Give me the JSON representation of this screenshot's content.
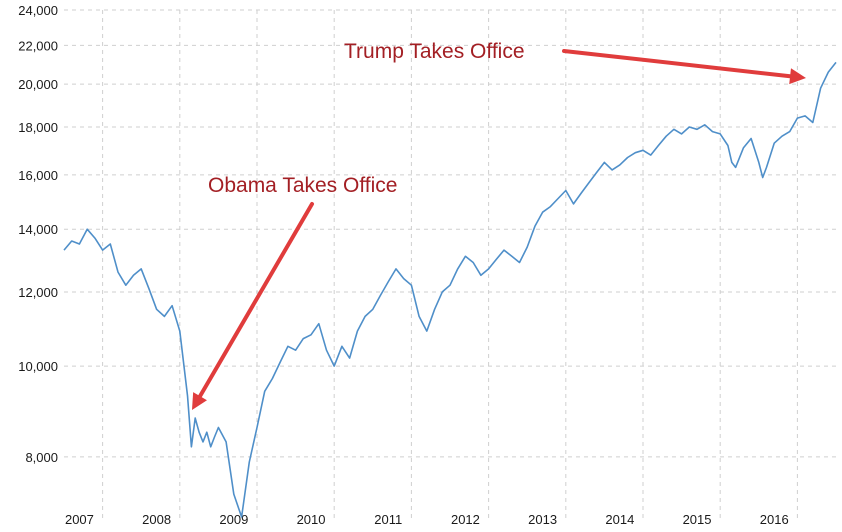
{
  "chart_data": {
    "type": "line",
    "title": "",
    "xlabel": "",
    "ylabel": "",
    "y_scale": "log",
    "ylim": [
      6850,
      24000
    ],
    "xlim": [
      2007.0,
      2017.0
    ],
    "grid": true,
    "colors": {
      "series": "#4f8fc9",
      "annotation_text": "#a31f24",
      "arrow": "#e03c3c",
      "grid": "#cfcfcf"
    },
    "y_ticks": [
      {
        "value": 8000,
        "label": "8,000"
      },
      {
        "value": 10000,
        "label": "10,000"
      },
      {
        "value": 12000,
        "label": "12,000"
      },
      {
        "value": 14000,
        "label": "14,000"
      },
      {
        "value": 16000,
        "label": "16,000"
      },
      {
        "value": 18000,
        "label": "18,000"
      },
      {
        "value": 20000,
        "label": "20,000"
      },
      {
        "value": 22000,
        "label": "22,000"
      },
      {
        "value": 24000,
        "label": "24,000"
      }
    ],
    "x_ticks": [
      {
        "value": 2007,
        "label": "2007"
      },
      {
        "value": 2008,
        "label": "2008"
      },
      {
        "value": 2009,
        "label": "2009"
      },
      {
        "value": 2010,
        "label": "2010"
      },
      {
        "value": 2011,
        "label": "2011"
      },
      {
        "value": 2012,
        "label": "2012"
      },
      {
        "value": 2013,
        "label": "2013"
      },
      {
        "value": 2014,
        "label": "2014"
      },
      {
        "value": 2015,
        "label": "2015"
      },
      {
        "value": 2016,
        "label": "2016"
      }
    ],
    "series": [
      {
        "name": "",
        "x": [
          2007.0,
          2007.1,
          2007.2,
          2007.3,
          2007.4,
          2007.5,
          2007.6,
          2007.7,
          2007.8,
          2007.9,
          2008.0,
          2008.1,
          2008.2,
          2008.3,
          2008.4,
          2008.5,
          2008.6,
          2008.65,
          2008.7,
          2008.75,
          2008.8,
          2008.85,
          2008.9,
          2008.95,
          2009.0,
          2009.1,
          2009.2,
          2009.3,
          2009.4,
          2009.5,
          2009.6,
          2009.7,
          2009.8,
          2009.9,
          2010.0,
          2010.1,
          2010.2,
          2010.3,
          2010.4,
          2010.5,
          2010.6,
          2010.7,
          2010.8,
          2010.9,
          2011.0,
          2011.1,
          2011.2,
          2011.3,
          2011.4,
          2011.5,
          2011.6,
          2011.7,
          2011.8,
          2011.9,
          2012.0,
          2012.1,
          2012.2,
          2012.3,
          2012.4,
          2012.5,
          2012.6,
          2012.7,
          2012.8,
          2012.9,
          2013.0,
          2013.1,
          2013.2,
          2013.3,
          2013.4,
          2013.5,
          2013.6,
          2013.7,
          2013.8,
          2013.9,
          2014.0,
          2014.1,
          2014.2,
          2014.3,
          2014.4,
          2014.5,
          2014.6,
          2014.7,
          2014.8,
          2014.9,
          2015.0,
          2015.1,
          2015.2,
          2015.3,
          2015.4,
          2015.5,
          2015.6,
          2015.65,
          2015.7,
          2015.8,
          2015.9,
          2016.0,
          2016.05,
          2016.1,
          2016.2,
          2016.3,
          2016.4,
          2016.5,
          2016.6,
          2016.7,
          2016.8,
          2016.9,
          2017.0
        ],
        "y": [
          13300,
          13600,
          13500,
          14000,
          13700,
          13300,
          13500,
          12600,
          12200,
          12500,
          12700,
          12100,
          11500,
          11300,
          11600,
          10900,
          9300,
          8200,
          8800,
          8500,
          8300,
          8500,
          8200,
          8400,
          8600,
          8300,
          7300,
          6900,
          7900,
          8600,
          9400,
          9700,
          10100,
          10500,
          10400,
          10700,
          10800,
          11100,
          10400,
          10000,
          10500,
          10200,
          10900,
          11300,
          11500,
          11900,
          12300,
          12700,
          12400,
          12200,
          11300,
          10900,
          11500,
          12000,
          12200,
          12700,
          13100,
          12900,
          12500,
          12700,
          13000,
          13300,
          13100,
          12900,
          13400,
          14100,
          14600,
          14800,
          15100,
          15400,
          14900,
          15300,
          15700,
          16100,
          16500,
          16200,
          16400,
          16700,
          16900,
          17000,
          16800,
          17200,
          17600,
          17900,
          17700,
          18000,
          17900,
          18100,
          17800,
          17700,
          17200,
          16500,
          16300,
          17100,
          17500,
          16500,
          15900,
          16300,
          17300,
          17600,
          17800,
          18400,
          18500,
          18200,
          19800,
          20600,
          21100
        ]
      }
    ],
    "annotations": [
      {
        "text": "Obama Takes Office",
        "x": 2009.05,
        "y": 8000
      },
      {
        "text": "Trump Takes Office",
        "x": 2017.05,
        "y": 20800
      }
    ]
  }
}
